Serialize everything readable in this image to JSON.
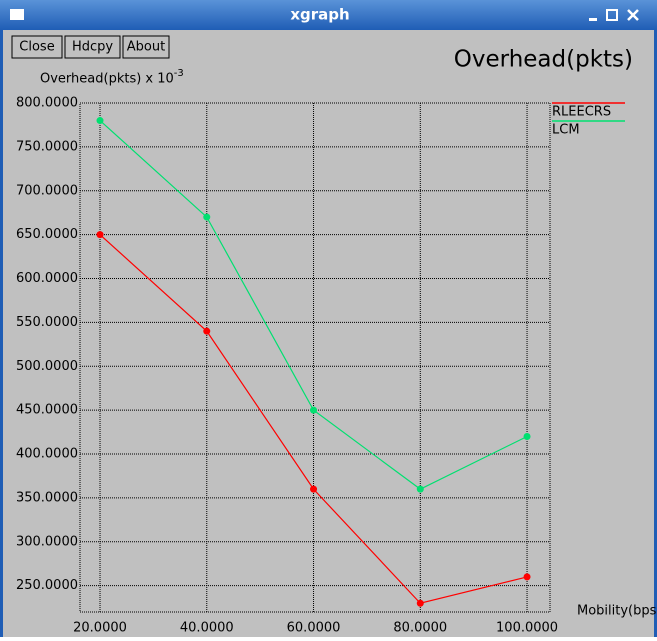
{
  "window": {
    "title": "xgraph",
    "buttons": [
      "Close",
      "Hdcpy",
      "About"
    ]
  },
  "chart_data": {
    "type": "line",
    "title": "Overhead(pkts)",
    "y_label": "Overhead(pkts) x 10",
    "y_label_exponent": "-3",
    "x_label": "Mobility(bps",
    "x": [
      20,
      40,
      60,
      80,
      100
    ],
    "series": [
      {
        "name": "RLEECRS",
        "color": "#ff0000",
        "values": [
          650,
          540,
          360,
          230,
          260
        ]
      },
      {
        "name": "LCM",
        "color": "#00e070",
        "values": [
          780,
          670,
          450,
          360,
          420
        ]
      }
    ],
    "xlim": [
      16.25,
      104.3
    ],
    "ylim": [
      220,
      800
    ],
    "xticks": [
      {
        "value": 20,
        "label": "20.0000"
      },
      {
        "value": 40,
        "label": "40.0000"
      },
      {
        "value": 60,
        "label": "60.0000"
      },
      {
        "value": 80,
        "label": "80.0000"
      },
      {
        "value": 100,
        "label": "100.0000"
      }
    ],
    "yticks": [
      {
        "value": 250,
        "label": "250.0000"
      },
      {
        "value": 300,
        "label": "300.0000"
      },
      {
        "value": 350,
        "label": "350.0000"
      },
      {
        "value": 400,
        "label": "400.0000"
      },
      {
        "value": 450,
        "label": "450.0000"
      },
      {
        "value": 500,
        "label": "500.0000"
      },
      {
        "value": 550,
        "label": "550.0000"
      },
      {
        "value": 600,
        "label": "600.0000"
      },
      {
        "value": 650,
        "label": "650.0000"
      },
      {
        "value": 700,
        "label": "700.0000"
      },
      {
        "value": 750,
        "label": "750.0000"
      },
      {
        "value": 800,
        "label": "800.0000"
      }
    ],
    "grid": true,
    "legend": "right"
  }
}
